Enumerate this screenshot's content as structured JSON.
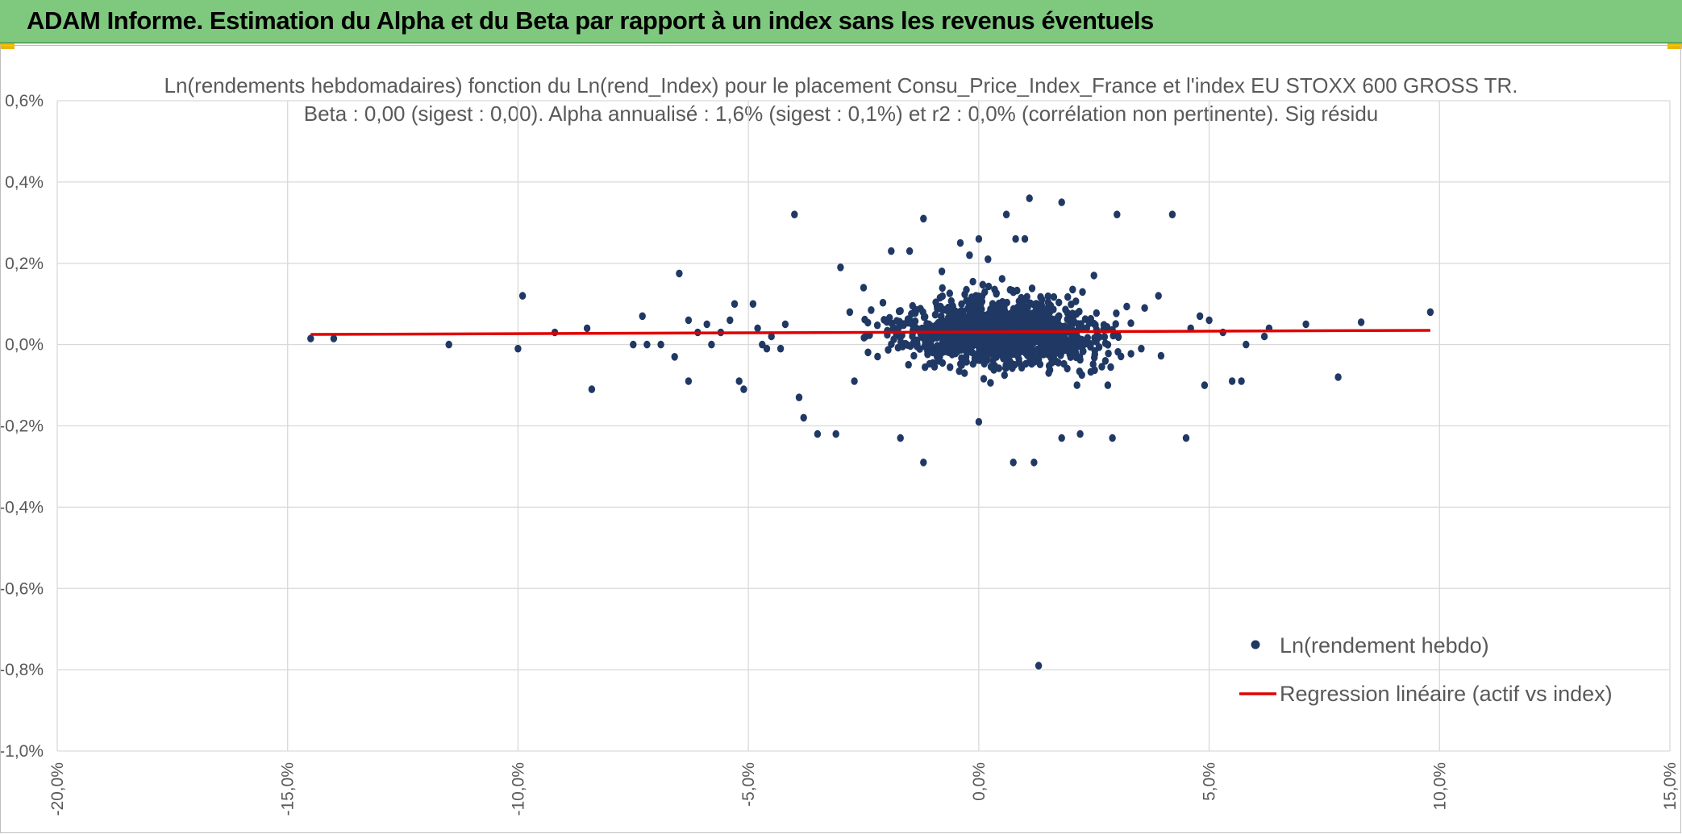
{
  "header": {
    "title": "ADAM Informe. Estimation du Alpha et du Beta par rapport à un index sans les revenus éventuels"
  },
  "colors": {
    "banner": "#7fc97f",
    "points": "#203864",
    "regression": "#e00000",
    "grid": "#d9d9d9",
    "text": "#595959"
  },
  "chart_data": {
    "type": "scatter",
    "title_line1": "Ln(rendements hebdomadaires) fonction du Ln(rend_Index) pour le placement Consu_Price_Index_France et l'index EU STOXX 600 GROSS TR.",
    "title_line2": "Beta : 0,00 (sigest : 0,00). Alpha annualisé : 1,6% (sigest : 0,1%) et r2 : 0,0% (corrélation non pertinente). Sig résidu",
    "xlabel": "",
    "ylabel": "",
    "xlim": [
      -20,
      15
    ],
    "ylim": [
      -1.0,
      0.6
    ],
    "x_ticks": [
      -20,
      -15,
      -10,
      -5,
      0,
      5,
      10,
      15
    ],
    "y_ticks": [
      -1.0,
      -0.8,
      -0.6,
      -0.4,
      -0.2,
      0.0,
      0.2,
      0.4,
      0.6
    ],
    "x_tick_labels": [
      "-20,0%",
      "-15,0%",
      "-10,0%",
      "-5,0%",
      "0,0%",
      "5,0%",
      "10,0%",
      "15,0%"
    ],
    "y_tick_labels": [
      "-1,0%",
      "-0,8%",
      "-0,6%",
      "-0,4%",
      "-0,2%",
      "0,0%",
      "0,2%",
      "0,4%",
      "0,6%"
    ],
    "grid": true,
    "legend_position": "bottom-right",
    "series": [
      {
        "name": "Ln(rendement hebdo)",
        "type": "scatter",
        "points": [
          [
            -14.5,
            0.015
          ],
          [
            -14.0,
            0.015
          ],
          [
            -11.5,
            0.0
          ],
          [
            -10.0,
            -0.01
          ],
          [
            -9.9,
            0.12
          ],
          [
            -9.2,
            0.03
          ],
          [
            -8.5,
            0.04
          ],
          [
            -8.4,
            -0.11
          ],
          [
            -7.5,
            0.0
          ],
          [
            -7.3,
            0.07
          ],
          [
            -7.2,
            0.0
          ],
          [
            -6.9,
            0.0
          ],
          [
            -6.6,
            -0.03
          ],
          [
            -6.5,
            0.175
          ],
          [
            -6.3,
            0.06
          ],
          [
            -6.3,
            -0.09
          ],
          [
            -6.1,
            0.03
          ],
          [
            -5.9,
            0.05
          ],
          [
            -5.8,
            0.0
          ],
          [
            -5.6,
            0.03
          ],
          [
            -5.4,
            0.06
          ],
          [
            -5.3,
            0.1
          ],
          [
            -5.2,
            -0.09
          ],
          [
            -5.1,
            -0.11
          ],
          [
            -4.9,
            0.1
          ],
          [
            -4.8,
            0.04
          ],
          [
            -4.7,
            0.0
          ],
          [
            -4.6,
            -0.01
          ],
          [
            -4.5,
            0.02
          ],
          [
            -4.3,
            -0.01
          ],
          [
            -4.2,
            0.05
          ],
          [
            -4.0,
            0.32
          ],
          [
            -3.9,
            -0.13
          ],
          [
            -3.8,
            -0.18
          ],
          [
            -3.5,
            -0.22
          ],
          [
            -3.1,
            -0.22
          ],
          [
            -3.0,
            0.19
          ],
          [
            -2.8,
            0.08
          ],
          [
            -2.7,
            -0.09
          ],
          [
            -2.5,
            0.14
          ],
          [
            -1.9,
            0.23
          ],
          [
            -1.7,
            -0.23
          ],
          [
            -1.5,
            0.23
          ],
          [
            -1.2,
            0.31
          ],
          [
            -1.2,
            -0.29
          ],
          [
            -0.8,
            0.18
          ],
          [
            -0.4,
            0.25
          ],
          [
            -0.2,
            0.22
          ],
          [
            0.0,
            0.26
          ],
          [
            0.0,
            -0.19
          ],
          [
            0.2,
            0.21
          ],
          [
            0.6,
            0.32
          ],
          [
            0.75,
            -0.29
          ],
          [
            0.8,
            0.26
          ],
          [
            1.0,
            0.26
          ],
          [
            1.1,
            0.36
          ],
          [
            1.2,
            -0.29
          ],
          [
            1.3,
            -0.79
          ],
          [
            1.8,
            0.35
          ],
          [
            1.8,
            -0.23
          ],
          [
            2.2,
            -0.22
          ],
          [
            2.5,
            0.17
          ],
          [
            2.8,
            -0.1
          ],
          [
            2.9,
            -0.23
          ],
          [
            3.0,
            0.32
          ],
          [
            3.6,
            0.09
          ],
          [
            3.9,
            0.12
          ],
          [
            4.2,
            0.32
          ],
          [
            4.5,
            -0.23
          ],
          [
            4.6,
            0.04
          ],
          [
            4.8,
            0.07
          ],
          [
            4.9,
            -0.1
          ],
          [
            5.0,
            0.06
          ],
          [
            5.3,
            0.03
          ],
          [
            5.5,
            -0.09
          ],
          [
            5.7,
            -0.09
          ],
          [
            5.8,
            0.0
          ],
          [
            6.2,
            0.02
          ],
          [
            6.3,
            0.04
          ],
          [
            7.1,
            0.05
          ],
          [
            7.8,
            -0.08
          ],
          [
            8.3,
            0.055
          ],
          [
            9.8,
            0.08
          ]
        ]
      },
      {
        "name": "Regression linéaire (actif vs index)",
        "type": "line",
        "x": [
          -14.5,
          9.8
        ],
        "y": [
          0.025,
          0.035
        ]
      }
    ]
  }
}
